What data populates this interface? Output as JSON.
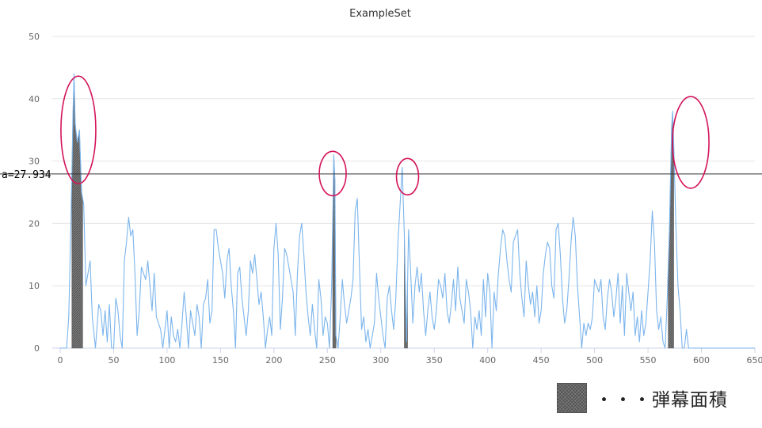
{
  "chart_data": {
    "type": "line",
    "title": "ExampleSet",
    "xlabel": "",
    "ylabel": "",
    "xlim": [
      0,
      650
    ],
    "ylim": [
      0,
      50
    ],
    "x_ticks": [
      "0",
      "50",
      "100",
      "150",
      "200",
      "250",
      "300",
      "350",
      "400",
      "450",
      "500",
      "550",
      "600",
      "650"
    ],
    "y_ticks": [
      "0",
      "10",
      "20",
      "30",
      "40",
      "50"
    ],
    "grid": true,
    "series": [
      {
        "color": "#7cb5ec",
        "points": [
          [
            0,
            0
          ],
          [
            6,
            0
          ],
          [
            8,
            5
          ],
          [
            10,
            20
          ],
          [
            12,
            38
          ],
          [
            13,
            44
          ],
          [
            14,
            36
          ],
          [
            16,
            33
          ],
          [
            18,
            35
          ],
          [
            20,
            25
          ],
          [
            22,
            23
          ],
          [
            24,
            10
          ],
          [
            26,
            12
          ],
          [
            28,
            14
          ],
          [
            30,
            5
          ],
          [
            33,
            0
          ],
          [
            36,
            7
          ],
          [
            38,
            6
          ],
          [
            40,
            2
          ],
          [
            42,
            6
          ],
          [
            44,
            1
          ],
          [
            46,
            7
          ],
          [
            48,
            0
          ],
          [
            50,
            0
          ],
          [
            52,
            8
          ],
          [
            54,
            6
          ],
          [
            56,
            2
          ],
          [
            58,
            0
          ],
          [
            60,
            14
          ],
          [
            62,
            17
          ],
          [
            64,
            21
          ],
          [
            66,
            18
          ],
          [
            68,
            19
          ],
          [
            70,
            12
          ],
          [
            72,
            2
          ],
          [
            74,
            6
          ],
          [
            76,
            13
          ],
          [
            78,
            12
          ],
          [
            80,
            11
          ],
          [
            82,
            14
          ],
          [
            84,
            10
          ],
          [
            86,
            6
          ],
          [
            88,
            12
          ],
          [
            90,
            5
          ],
          [
            92,
            4
          ],
          [
            94,
            3
          ],
          [
            96,
            0
          ],
          [
            100,
            6
          ],
          [
            102,
            0
          ],
          [
            104,
            5
          ],
          [
            106,
            2
          ],
          [
            108,
            1
          ],
          [
            110,
            3
          ],
          [
            112,
            0
          ],
          [
            114,
            4
          ],
          [
            116,
            9
          ],
          [
            118,
            5
          ],
          [
            120,
            0
          ],
          [
            122,
            6
          ],
          [
            124,
            4
          ],
          [
            126,
            2
          ],
          [
            128,
            7
          ],
          [
            130,
            5
          ],
          [
            132,
            0
          ],
          [
            134,
            7
          ],
          [
            136,
            8
          ],
          [
            138,
            11
          ],
          [
            140,
            4
          ],
          [
            142,
            6
          ],
          [
            144,
            19
          ],
          [
            146,
            19
          ],
          [
            148,
            16
          ],
          [
            150,
            14
          ],
          [
            152,
            12
          ],
          [
            154,
            8
          ],
          [
            156,
            14
          ],
          [
            158,
            16
          ],
          [
            160,
            10
          ],
          [
            162,
            6
          ],
          [
            164,
            0
          ],
          [
            166,
            12
          ],
          [
            168,
            13
          ],
          [
            170,
            8
          ],
          [
            172,
            5
          ],
          [
            174,
            2
          ],
          [
            176,
            6
          ],
          [
            178,
            14
          ],
          [
            180,
            12
          ],
          [
            182,
            15
          ],
          [
            184,
            11
          ],
          [
            186,
            7
          ],
          [
            188,
            9
          ],
          [
            190,
            5
          ],
          [
            192,
            0
          ],
          [
            194,
            3
          ],
          [
            196,
            5
          ],
          [
            198,
            2
          ],
          [
            200,
            16
          ],
          [
            202,
            20
          ],
          [
            204,
            15
          ],
          [
            206,
            3
          ],
          [
            208,
            8
          ],
          [
            210,
            16
          ],
          [
            212,
            15
          ],
          [
            214,
            13
          ],
          [
            216,
            11
          ],
          [
            218,
            9
          ],
          [
            220,
            2
          ],
          [
            222,
            12
          ],
          [
            224,
            18
          ],
          [
            226,
            20
          ],
          [
            228,
            15
          ],
          [
            230,
            9
          ],
          [
            232,
            5
          ],
          [
            234,
            2
          ],
          [
            236,
            7
          ],
          [
            238,
            3
          ],
          [
            240,
            0
          ],
          [
            242,
            11
          ],
          [
            244,
            8
          ],
          [
            246,
            2
          ],
          [
            248,
            5
          ],
          [
            250,
            4
          ],
          [
            252,
            0
          ],
          [
            254,
            10
          ],
          [
            256,
            31
          ],
          [
            257,
            27
          ],
          [
            258,
            2
          ],
          [
            260,
            0
          ],
          [
            262,
            5
          ],
          [
            264,
            11
          ],
          [
            266,
            7
          ],
          [
            268,
            4
          ],
          [
            270,
            6
          ],
          [
            272,
            8
          ],
          [
            274,
            11
          ],
          [
            276,
            22
          ],
          [
            278,
            24
          ],
          [
            280,
            13
          ],
          [
            282,
            3
          ],
          [
            284,
            5
          ],
          [
            286,
            1
          ],
          [
            288,
            3
          ],
          [
            290,
            0
          ],
          [
            292,
            2
          ],
          [
            294,
            4
          ],
          [
            296,
            12
          ],
          [
            298,
            8
          ],
          [
            300,
            5
          ],
          [
            302,
            2
          ],
          [
            304,
            0
          ],
          [
            306,
            8
          ],
          [
            308,
            10
          ],
          [
            310,
            6
          ],
          [
            312,
            3
          ],
          [
            314,
            8
          ],
          [
            316,
            17
          ],
          [
            318,
            23
          ],
          [
            320,
            29
          ],
          [
            322,
            18
          ],
          [
            324,
            1
          ],
          [
            326,
            19
          ],
          [
            328,
            12
          ],
          [
            330,
            4
          ],
          [
            332,
            10
          ],
          [
            334,
            13
          ],
          [
            336,
            9
          ],
          [
            338,
            12
          ],
          [
            340,
            6
          ],
          [
            342,
            2
          ],
          [
            344,
            6
          ],
          [
            346,
            9
          ],
          [
            348,
            5
          ],
          [
            350,
            3
          ],
          [
            352,
            6
          ],
          [
            354,
            11
          ],
          [
            356,
            10
          ],
          [
            358,
            8
          ],
          [
            360,
            12
          ],
          [
            362,
            6
          ],
          [
            364,
            4
          ],
          [
            366,
            7
          ],
          [
            368,
            11
          ],
          [
            370,
            6
          ],
          [
            372,
            13
          ],
          [
            374,
            8
          ],
          [
            376,
            6
          ],
          [
            378,
            4
          ],
          [
            380,
            11
          ],
          [
            382,
            9
          ],
          [
            384,
            6
          ],
          [
            386,
            0
          ],
          [
            388,
            5
          ],
          [
            390,
            3
          ],
          [
            392,
            6
          ],
          [
            394,
            2
          ],
          [
            396,
            11
          ],
          [
            398,
            5
          ],
          [
            400,
            12
          ],
          [
            402,
            9
          ],
          [
            404,
            0
          ],
          [
            406,
            9
          ],
          [
            408,
            6
          ],
          [
            410,
            12
          ],
          [
            412,
            16
          ],
          [
            414,
            19
          ],
          [
            416,
            18
          ],
          [
            418,
            14
          ],
          [
            420,
            11
          ],
          [
            422,
            9
          ],
          [
            424,
            17
          ],
          [
            426,
            18
          ],
          [
            428,
            19
          ],
          [
            430,
            12
          ],
          [
            432,
            8
          ],
          [
            434,
            5
          ],
          [
            436,
            14
          ],
          [
            438,
            10
          ],
          [
            440,
            7
          ],
          [
            442,
            9
          ],
          [
            444,
            5
          ],
          [
            446,
            10
          ],
          [
            448,
            4
          ],
          [
            450,
            6
          ],
          [
            452,
            12
          ],
          [
            454,
            15
          ],
          [
            456,
            17
          ],
          [
            458,
            16
          ],
          [
            460,
            10
          ],
          [
            462,
            8
          ],
          [
            464,
            19
          ],
          [
            466,
            20
          ],
          [
            468,
            15
          ],
          [
            470,
            8
          ],
          [
            472,
            4
          ],
          [
            474,
            6
          ],
          [
            476,
            11
          ],
          [
            478,
            17
          ],
          [
            480,
            21
          ],
          [
            482,
            18
          ],
          [
            484,
            10
          ],
          [
            486,
            5
          ],
          [
            488,
            0
          ],
          [
            490,
            4
          ],
          [
            492,
            2
          ],
          [
            494,
            4
          ],
          [
            496,
            3
          ],
          [
            498,
            5
          ],
          [
            500,
            11
          ],
          [
            502,
            10
          ],
          [
            504,
            9
          ],
          [
            506,
            11
          ],
          [
            508,
            5
          ],
          [
            510,
            3
          ],
          [
            512,
            8
          ],
          [
            514,
            11
          ],
          [
            516,
            9
          ],
          [
            518,
            5
          ],
          [
            520,
            8
          ],
          [
            522,
            12
          ],
          [
            524,
            4
          ],
          [
            526,
            10
          ],
          [
            528,
            2
          ],
          [
            530,
            12
          ],
          [
            532,
            9
          ],
          [
            534,
            6
          ],
          [
            536,
            9
          ],
          [
            538,
            2
          ],
          [
            540,
            5
          ],
          [
            542,
            1
          ],
          [
            544,
            6
          ],
          [
            546,
            2
          ],
          [
            548,
            4
          ],
          [
            550,
            9
          ],
          [
            552,
            14
          ],
          [
            554,
            22
          ],
          [
            556,
            17
          ],
          [
            558,
            6
          ],
          [
            560,
            3
          ],
          [
            562,
            5
          ],
          [
            564,
            1
          ],
          [
            566,
            0
          ],
          [
            568,
            8
          ],
          [
            570,
            19
          ],
          [
            572,
            35
          ],
          [
            573,
            38
          ],
          [
            574,
            33
          ],
          [
            576,
            20
          ],
          [
            578,
            10
          ],
          [
            580,
            6
          ],
          [
            582,
            0
          ],
          [
            584,
            0
          ],
          [
            586,
            3
          ],
          [
            588,
            0
          ],
          [
            600,
            0
          ],
          [
            650,
            0
          ]
        ]
      }
    ],
    "threshold": {
      "value": 27.934,
      "label": "a=27.934",
      "color": "#333333"
    },
    "annotations": {
      "circles": [
        [
          17,
          35
        ],
        [
          255,
          28
        ],
        [
          325,
          27.5
        ],
        [
          590,
          33
        ]
      ],
      "circle_color": "#d4145a"
    },
    "barrage_regions": [
      {
        "from": 11,
        "to": 21
      },
      {
        "from": 255,
        "to": 258
      },
      {
        "from": 322,
        "to": 325
      },
      {
        "from": 569,
        "to": 574
      }
    ],
    "legend": {
      "label": "・・・弾幕面積",
      "swatch_color": "#7a7a7a"
    }
  }
}
